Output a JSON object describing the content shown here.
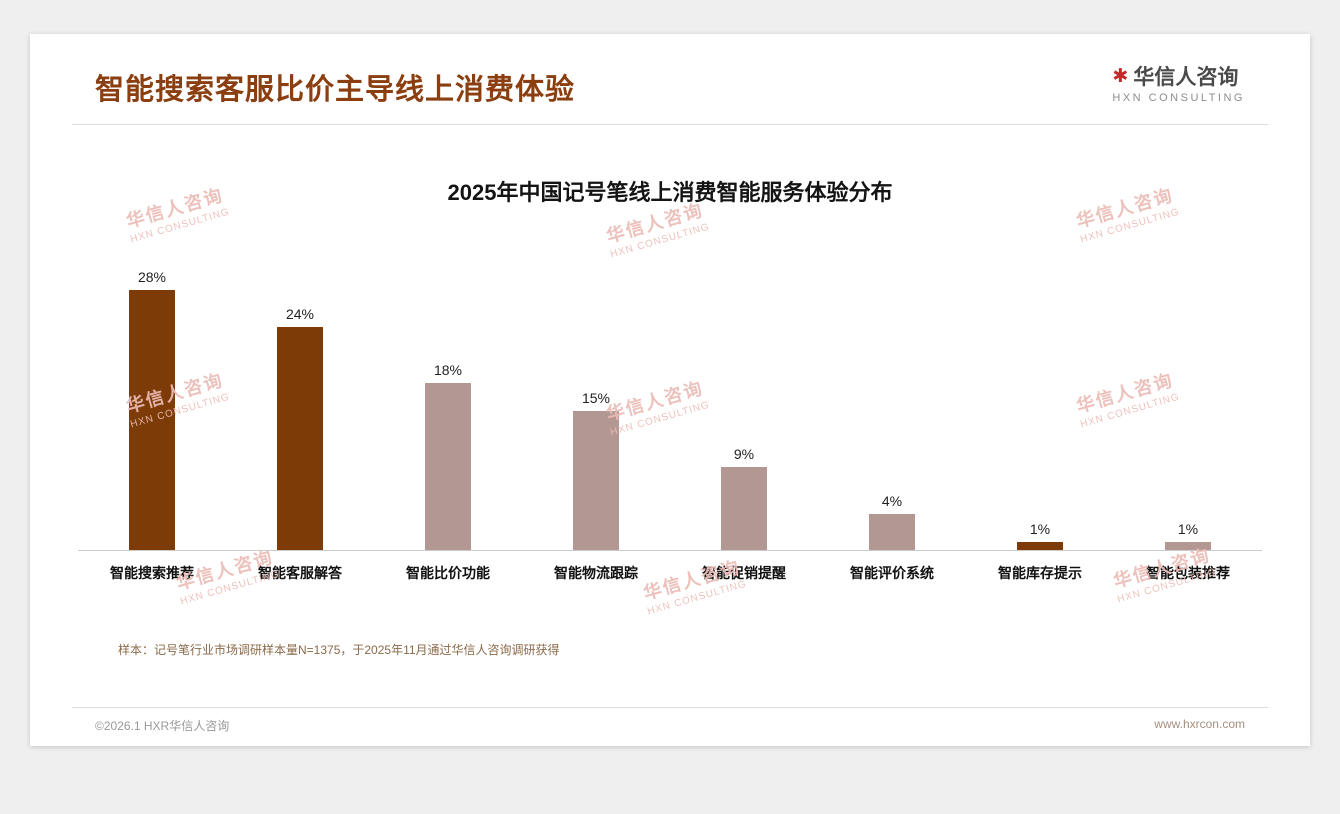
{
  "header": {
    "title": "智能搜索客服比价主导线上消费体验",
    "logo": {
      "mark": "✱",
      "cn": "华信人咨询",
      "en": "HXN CONSULTING"
    }
  },
  "chart_data": {
    "type": "bar",
    "title": "2025年中国记号笔线上消费智能服务体验分布",
    "categories": [
      "智能搜索推荐",
      "智能客服解答",
      "智能比价功能",
      "智能物流跟踪",
      "智能促销提醒",
      "智能评价系统",
      "智能库存提示",
      "智能包装推荐"
    ],
    "values": [
      28,
      24,
      18,
      15,
      9,
      4,
      1,
      1
    ],
    "value_labels": [
      "28%",
      "24%",
      "18%",
      "15%",
      "9%",
      "4%",
      "1%",
      "1%"
    ],
    "bar_colors": [
      "#7C3B07",
      "#7C3B07",
      "#B29792",
      "#B29792",
      "#B29792",
      "#B29792",
      "#7C3B07",
      "#B29792"
    ],
    "xlabel": "",
    "ylabel": "",
    "ylim": [
      0,
      30
    ],
    "grid": false,
    "legend": "none"
  },
  "watermark": {
    "line1": "华信人咨询",
    "line2": "HXN CONSULTING"
  },
  "footnote": "样本：记号笔行业市场调研样本量N=1375，于2025年11月通过华信人咨询调研获得",
  "footer": {
    "left": "©2026.1 HXR华信人咨询",
    "right": "www.hxrcon.com"
  },
  "colors": {
    "accent": "#8B3E0F",
    "bar_dark": "#7C3B07",
    "bar_light": "#B29792",
    "watermark": "#ECBCB6",
    "logo_red": "#C62828"
  }
}
